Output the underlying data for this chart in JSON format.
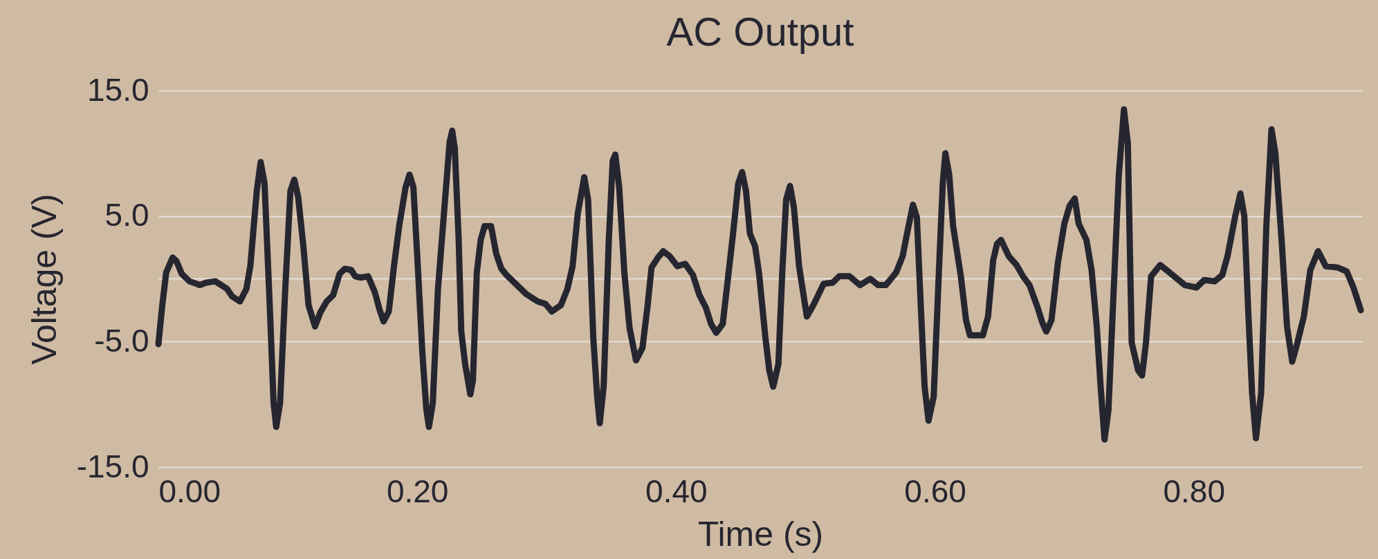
{
  "chart_data": {
    "type": "line",
    "title": "AC Output",
    "xlabel": "Time (s)",
    "ylabel": "Voltage (V)",
    "xlim": [
      0,
      0.93
    ],
    "ylim": [
      -15,
      15
    ],
    "xticks": [
      {
        "value": 0,
        "label": "0.00"
      },
      {
        "value": 0.2,
        "label": "0.20"
      },
      {
        "value": 0.4,
        "label": "0.40"
      },
      {
        "value": 0.6,
        "label": "0.60"
      },
      {
        "value": 0.8,
        "label": "0.80"
      }
    ],
    "yticks": [
      {
        "value": -15,
        "label": "-15.0"
      },
      {
        "value": -5,
        "label": "-5.0"
      },
      {
        "value": 5,
        "label": "5.0"
      },
      {
        "value": 15,
        "label": "15.0"
      }
    ],
    "grid": "y",
    "marker": "none",
    "line_style": "solid",
    "ref_lines": [
      {
        "axis": "y",
        "value": 0,
        "color": "#e6e2dc"
      }
    ],
    "series": [
      {
        "color": "#262630",
        "x": [
          0,
          0.003,
          0.006,
          0.011,
          0.014,
          0.018,
          0.024,
          0.032,
          0.037,
          0.044,
          0.053,
          0.057,
          0.063,
          0.068,
          0.071,
          0.076,
          0.079,
          0.082,
          0.086,
          0.089,
          0.091,
          0.094,
          0.098,
          0.102,
          0.105,
          0.108,
          0.112,
          0.116,
          0.121,
          0.125,
          0.13,
          0.135,
          0.14,
          0.144,
          0.149,
          0.152,
          0.156,
          0.162,
          0.167,
          0.171,
          0.174,
          0.178,
          0.182,
          0.186,
          0.191,
          0.194,
          0.197,
          0.2,
          0.204,
          0.207,
          0.209,
          0.212,
          0.216,
          0.221,
          0.225,
          0.227,
          0.229,
          0.232,
          0.234,
          0.237,
          0.241,
          0.243,
          0.246,
          0.249,
          0.252,
          0.257,
          0.261,
          0.265,
          0.269,
          0.276,
          0.284,
          0.293,
          0.299,
          0.304,
          0.311,
          0.316,
          0.32,
          0.324,
          0.329,
          0.332,
          0.336,
          0.339,
          0.341,
          0.344,
          0.348,
          0.351,
          0.353,
          0.356,
          0.36,
          0.364,
          0.369,
          0.374,
          0.378,
          0.381,
          0.386,
          0.39,
          0.395,
          0.401,
          0.407,
          0.413,
          0.418,
          0.423,
          0.427,
          0.431,
          0.436,
          0.44,
          0.444,
          0.448,
          0.451,
          0.454,
          0.457,
          0.461,
          0.464,
          0.469,
          0.472,
          0.475,
          0.479,
          0.482,
          0.485,
          0.488,
          0.491,
          0.495,
          0.501,
          0.506,
          0.514,
          0.521,
          0.526,
          0.534,
          0.542,
          0.55,
          0.556,
          0.562,
          0.57,
          0.575,
          0.579,
          0.583,
          0.586,
          0.589,
          0.592,
          0.595,
          0.599,
          0.603,
          0.606,
          0.608,
          0.611,
          0.614,
          0.62,
          0.624,
          0.627,
          0.637,
          0.641,
          0.645,
          0.648,
          0.651,
          0.657,
          0.663,
          0.668,
          0.673,
          0.679,
          0.683,
          0.686,
          0.69,
          0.695,
          0.7,
          0.704,
          0.708,
          0.711,
          0.717,
          0.721,
          0.725,
          0.728,
          0.731,
          0.734,
          0.738,
          0.742,
          0.746,
          0.749,
          0.752,
          0.757,
          0.76,
          0.763,
          0.767,
          0.774,
          0.78,
          0.786,
          0.793,
          0.802,
          0.808,
          0.816,
          0.822,
          0.826,
          0.832,
          0.836,
          0.839,
          0.842,
          0.845,
          0.848,
          0.852,
          0.856,
          0.86,
          0.863,
          0.868,
          0.872,
          0.876,
          0.88,
          0.885,
          0.89,
          0.896,
          0.902,
          0.911,
          0.918,
          0.923,
          0.929
        ],
        "values": [
          -5.2,
          -2.1,
          0.5,
          1.7,
          1.4,
          0.4,
          -0.2,
          -0.5,
          -0.3,
          -0.2,
          -0.8,
          -1.4,
          -1.8,
          -0.8,
          1.0,
          7.0,
          9.3,
          7.6,
          -2.1,
          -9.9,
          -11.8,
          -9.9,
          -0.8,
          7.0,
          7.9,
          6.5,
          2.6,
          -2.1,
          -3.8,
          -2.7,
          -1.8,
          -1.3,
          0.4,
          0.8,
          0.7,
          0.2,
          0.1,
          0.2,
          -1.0,
          -2.5,
          -3.4,
          -2.6,
          1.0,
          4.2,
          7.3,
          8.3,
          7.3,
          1.8,
          -6.0,
          -10.4,
          -11.8,
          -9.9,
          -0.8,
          5.7,
          10.9,
          11.8,
          10.4,
          3.1,
          -4.2,
          -6.8,
          -9.2,
          -8.1,
          0.5,
          3.1,
          4.2,
          4.2,
          2.0,
          0.8,
          0.3,
          -0.4,
          -1.2,
          -1.8,
          -2.0,
          -2.6,
          -2.1,
          -0.8,
          1.0,
          5.2,
          8.1,
          6.3,
          -4.7,
          -9.4,
          -11.5,
          -8.6,
          3.1,
          9.4,
          9.9,
          7.3,
          0.5,
          -3.9,
          -6.5,
          -5.5,
          -2.1,
          0.9,
          1.7,
          2.2,
          1.8,
          1.0,
          1.2,
          0.3,
          -1.3,
          -2.3,
          -3.6,
          -4.3,
          -3.6,
          0.0,
          3.6,
          7.6,
          8.5,
          7.0,
          3.6,
          2.6,
          0.5,
          -4.7,
          -7.3,
          -8.6,
          -6.8,
          0.5,
          6.3,
          7.4,
          5.7,
          1.0,
          -3.0,
          -2.1,
          -0.4,
          -0.3,
          0.2,
          0.2,
          -0.5,
          0.0,
          -0.5,
          -0.5,
          0.5,
          1.8,
          3.9,
          5.9,
          4.9,
          -2.1,
          -8.6,
          -11.3,
          -9.4,
          0.5,
          7.6,
          10.0,
          8.3,
          4.2,
          0.2,
          -3.3,
          -4.5,
          -4.5,
          -3.0,
          1.5,
          2.8,
          3.1,
          1.8,
          1.1,
          0.2,
          -0.5,
          -2.2,
          -3.5,
          -4.2,
          -3.3,
          1.3,
          4.4,
          5.8,
          6.4,
          4.4,
          3.1,
          0.7,
          -3.8,
          -8.6,
          -12.8,
          -10.5,
          -1.1,
          8.2,
          13.5,
          10.8,
          -5.1,
          -7.3,
          -7.7,
          -5.1,
          0.2,
          1.1,
          0.6,
          0.1,
          -0.5,
          -0.7,
          -0.1,
          -0.2,
          0.3,
          1.8,
          5.0,
          6.8,
          5.0,
          -2.5,
          -9.1,
          -12.7,
          -9.1,
          4.2,
          11.9,
          10.0,
          2.8,
          -3.8,
          -6.6,
          -5.1,
          -3.0,
          0.7,
          2.2,
          1.0,
          0.9,
          0.6,
          -0.6,
          -2.5
        ]
      }
    ]
  }
}
